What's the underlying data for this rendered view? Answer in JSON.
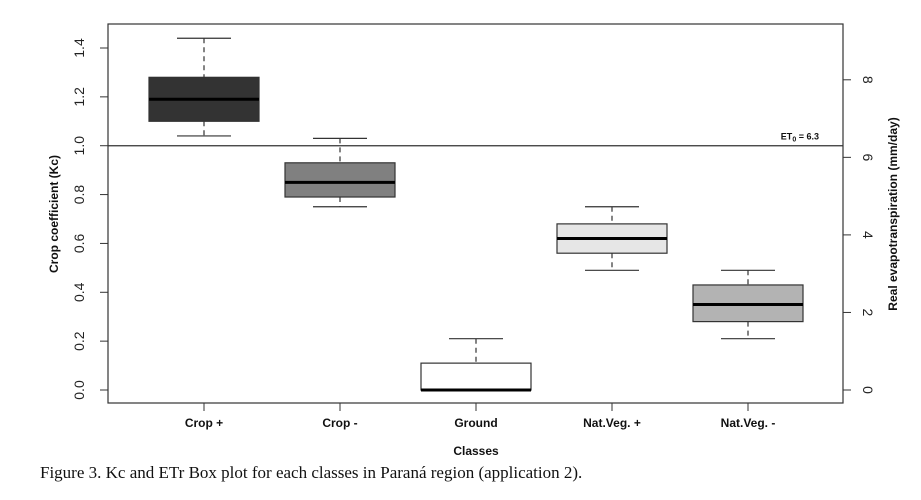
{
  "chart_data": {
    "type": "box",
    "title": "",
    "xlabel": "Classes",
    "ylabel": "Crop coefficient (Kc)",
    "y2label": "Real evapotranspiration (mm/day)",
    "categories": [
      "Crop +",
      "Crop -",
      "Ground",
      "Nat.Veg. +",
      "Nat.Veg. -"
    ],
    "series": [
      {
        "name": "Crop +",
        "whisker_low": 1.04,
        "q1": 1.1,
        "median": 1.19,
        "q3": 1.28,
        "whisker_high": 1.44,
        "fill": "#333333"
      },
      {
        "name": "Crop -",
        "whisker_low": 0.75,
        "q1": 0.79,
        "median": 0.85,
        "q3": 0.93,
        "whisker_high": 1.03,
        "fill": "#808080"
      },
      {
        "name": "Ground",
        "whisker_low": 0.0,
        "q1": 0.0,
        "median": 0.0,
        "q3": 0.11,
        "whisker_high": 0.21,
        "fill": "#ffffff"
      },
      {
        "name": "Nat.Veg. +",
        "whisker_low": 0.49,
        "q1": 0.56,
        "median": 0.62,
        "q3": 0.68,
        "whisker_high": 0.75,
        "fill": "#e6e6e6"
      },
      {
        "name": "Nat.Veg. -",
        "whisker_low": 0.21,
        "q1": 0.28,
        "median": 0.35,
        "q3": 0.43,
        "whisker_high": 0.49,
        "fill": "#b3b3b3"
      }
    ],
    "ylim": [
      0.0,
      1.4
    ],
    "yticks": [
      "0.0",
      "0.2",
      "0.4",
      "0.6",
      "0.8",
      "1.0",
      "1.2",
      "1.4"
    ],
    "ytick_values": [
      0.0,
      0.2,
      0.4,
      0.6,
      0.8,
      1.0,
      1.2,
      1.4
    ],
    "y2ticks": [
      "0",
      "2",
      "4",
      "6",
      "8"
    ],
    "y2tick_values": [
      0,
      2,
      4,
      6,
      8
    ],
    "reference_line": {
      "kc": 1.0,
      "label": "ET0 = 6.3",
      "label_main": "ET",
      "label_sub": "0",
      "label_rest": " = 6.3"
    },
    "grid": false,
    "legend": "none"
  },
  "caption": "Figure 3. Kc and ETr Box plot for each classes in Paraná region (application 2)."
}
